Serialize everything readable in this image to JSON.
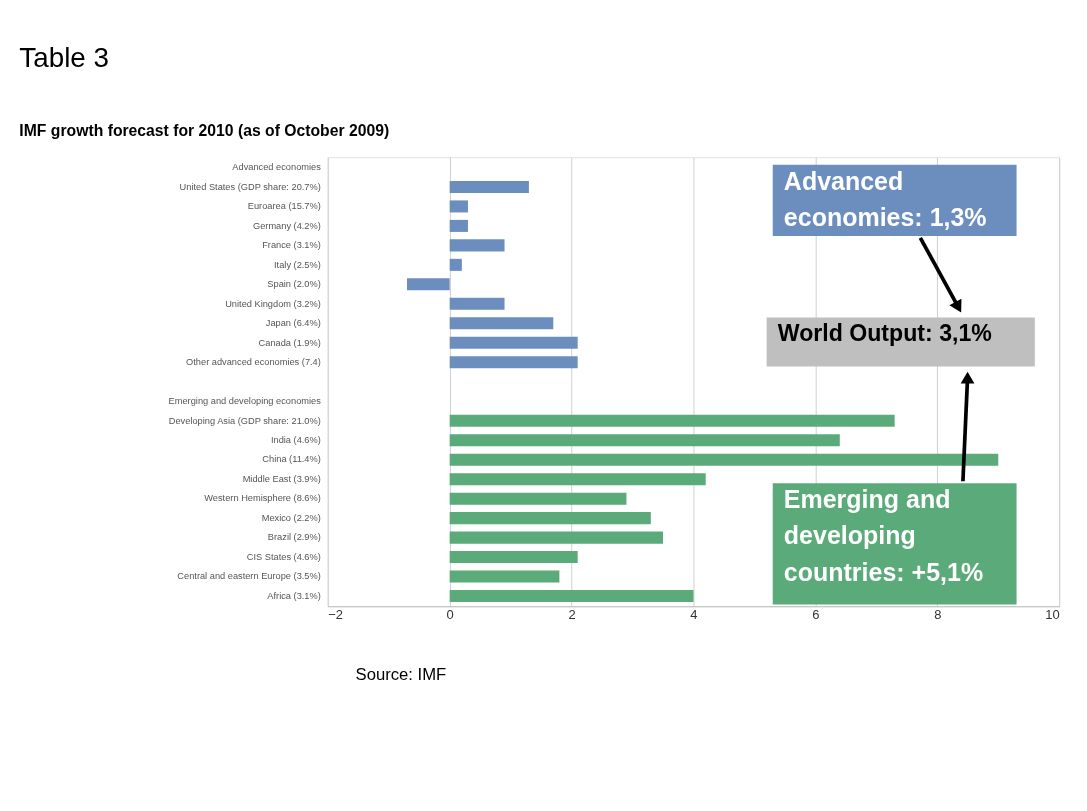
{
  "chart_data": {
    "type": "bar",
    "orientation": "horizontal",
    "title": "Table 3",
    "subtitle": "IMF growth forecast for 2010 (as of October 2009)",
    "categories": [
      "Advanced economies",
      "United States (GDP share: 20.7%)",
      "Euroarea (15.7%)",
      "Germany (4.2%)",
      "France (3.1%)",
      "Italy (2.5%)",
      "Spain (2.0%)",
      "United Kingdom (3.2%)",
      "Japan (6.4%)",
      "Canada (1.9%)",
      "Other advanced economies (7.4)",
      null,
      "Emerging and developing economies",
      "Developing Asia (GDP share: 21.0%)",
      "India (4.6%)",
      "China (11.4%)",
      "Middle East (3.9%)",
      "Western Hemisphere (8.6%)",
      "Mexico (2.2%)",
      "Brazil (2.9%)",
      "CIS States (4.6%)",
      "Central and eastern Europe (3.5%)",
      "Africa (3.1%)"
    ],
    "series": [
      {
        "color": "#6c8ebf",
        "values": [
          null,
          1.3,
          0.3,
          0.3,
          0.9,
          0.2,
          -0.7,
          0.9,
          1.7,
          2.1,
          2.1,
          null,
          null,
          null,
          null,
          null,
          null,
          null,
          null,
          null,
          null,
          null,
          null
        ]
      },
      {
        "color": "#5aaa7a",
        "values": [
          null,
          null,
          null,
          null,
          null,
          null,
          null,
          null,
          null,
          null,
          null,
          null,
          null,
          7.3,
          6.4,
          9.0,
          4.2,
          2.9,
          3.3,
          3.5,
          2.1,
          1.8,
          4.0
        ]
      }
    ],
    "xlim": [
      -2,
      10
    ],
    "xticks": [
      -2,
      0,
      2,
      4,
      6,
      8,
      10
    ],
    "grid": "x",
    "annotations": [
      "Advanced economies: 1,3%",
      "World Output: 3,1%",
      "Emerging and developing countries: +5,1%",
      "Source:  IMF"
    ]
  }
}
